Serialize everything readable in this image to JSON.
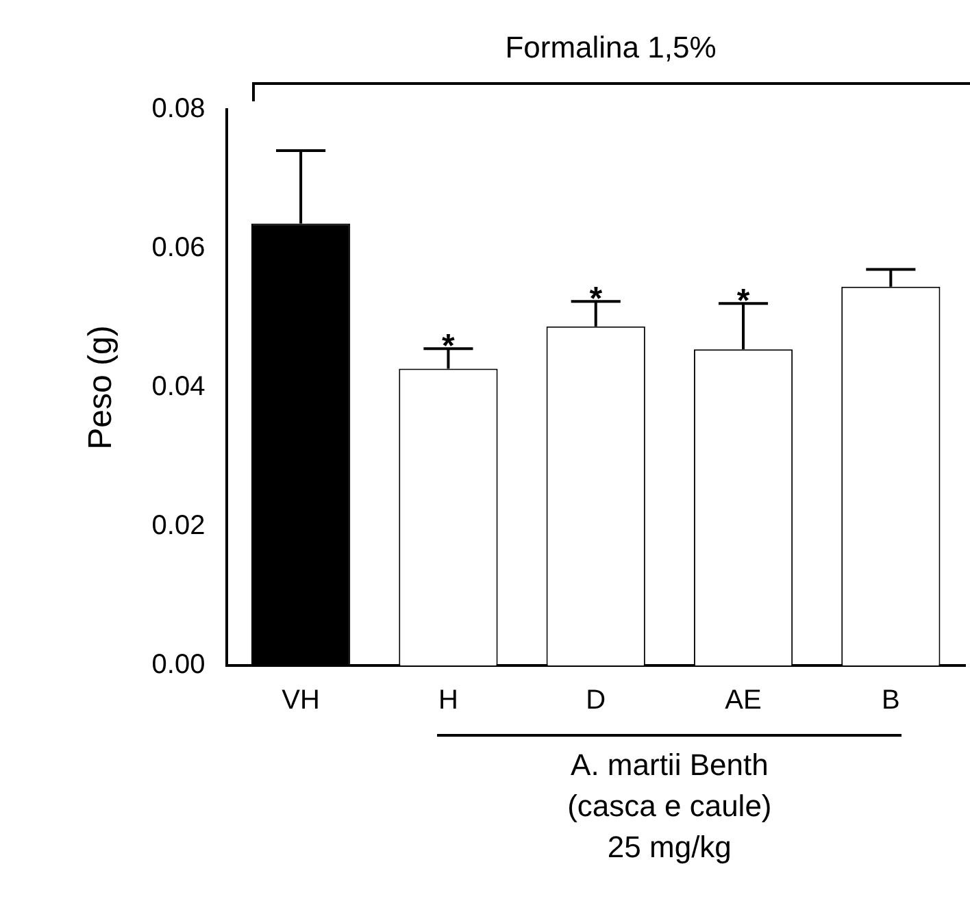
{
  "chart_data": {
    "type": "bar",
    "ylabel": "Peso (g)",
    "categories": [
      "VH",
      "H",
      "D",
      "AE",
      "B"
    ],
    "values": [
      0.0636,
      0.0427,
      0.0488,
      0.0455,
      0.0545
    ],
    "colors": [
      "#000000",
      "#ffffff",
      "#ffffff",
      "#ffffff",
      "#ffffff"
    ],
    "errors": [
      [
        0.0636,
        0.0741
      ],
      [
        0.0427,
        0.0456
      ],
      [
        0.0488,
        0.0524
      ],
      [
        0.0455,
        0.0521
      ],
      [
        0.0545,
        0.057
      ]
    ],
    "ylim": [
      0,
      0.08
    ],
    "yticks": [
      {
        "value": 0,
        "label": "0.00"
      },
      {
        "value": 0.02,
        "label": "0.02"
      },
      {
        "value": 0.04,
        "label": "0.04"
      },
      {
        "value": 0.06,
        "label": "0.06"
      },
      {
        "value": 0.08,
        "label": "0.08"
      }
    ],
    "grid": false,
    "legend": false,
    "annotations": [
      "Formalina 1,5%",
      {
        "text": "*",
        "x": "H",
        "y": 0.0456
      },
      {
        "text": "*",
        "x": "D",
        "y": 0.0524
      },
      {
        "text": "*",
        "x": "AE",
        "y": 0.0521
      },
      "A. martii Benth\n(casca e caule)\n25 mg/kg"
    ]
  }
}
